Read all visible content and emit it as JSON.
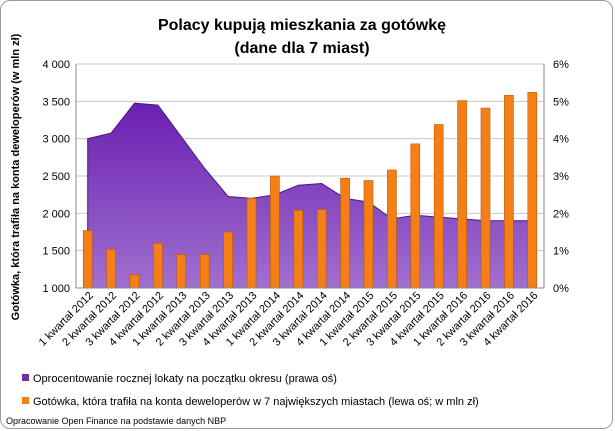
{
  "chart_data": {
    "type": "bar",
    "title_line1": "Polacy kupują mieszkania za gotówkę",
    "title_line2": "(dane dla 7 miast)",
    "ylabel": "Gotówka, która trafiła na konta deweloperów (w mln zł)",
    "y_left_ticks": [
      "1 000",
      "1 500",
      "2 000",
      "2 500",
      "3 000",
      "3 500",
      "4 000"
    ],
    "y_right_ticks": [
      "0%",
      "1%",
      "2%",
      "3%",
      "4%",
      "5%",
      "6%"
    ],
    "ylim_left": [
      1000,
      4000
    ],
    "ylim_right": [
      0,
      6
    ],
    "categories": [
      "1 kwartał 2012",
      "2 kwartał 2012",
      "3 kwartał 2012",
      "4 kwartał 2012",
      "1 kwartał 2013",
      "2 kwartał 2013",
      "3 kwartał 2013",
      "4 kwartał 2013",
      "1 kwartał 2014",
      "2 kwartał 2014",
      "3 kwartał 2014",
      "4 kwartał 2014",
      "1 kwartał 2015",
      "2 kwartał 2015",
      "3 kwartał 2015",
      "4 kwartał 2015",
      "1 kwartał 2016",
      "2 kwartał 2016",
      "3 kwartał 2016",
      "4 kwartał 2016"
    ],
    "series": [
      {
        "name": "Oprocentowanie rocznej lokaty na początku okresu (prawa oś)",
        "type": "area",
        "axis": "right",
        "color": "#7030a0",
        "values": [
          4.0,
          4.15,
          4.95,
          4.9,
          4.05,
          3.2,
          2.45,
          2.4,
          2.5,
          2.75,
          2.8,
          2.4,
          2.3,
          1.85,
          1.95,
          1.9,
          1.85,
          1.8,
          1.8,
          1.8
        ]
      },
      {
        "name": "Gotówka, która trafiła na konta deweloperów w 7 największych miastach (lewa oś; w mln zł)",
        "type": "bar",
        "axis": "left",
        "color": "#f57f17",
        "values": [
          1770,
          1520,
          1180,
          1600,
          1450,
          1450,
          1750,
          2200,
          2500,
          2040,
          2050,
          2470,
          2440,
          2580,
          2930,
          3190,
          3510,
          3410,
          3580,
          3620
        ]
      }
    ],
    "grid": true,
    "legend_position": "bottom",
    "source": "Opracowanie Open Finance na podstawie danych NBP"
  }
}
